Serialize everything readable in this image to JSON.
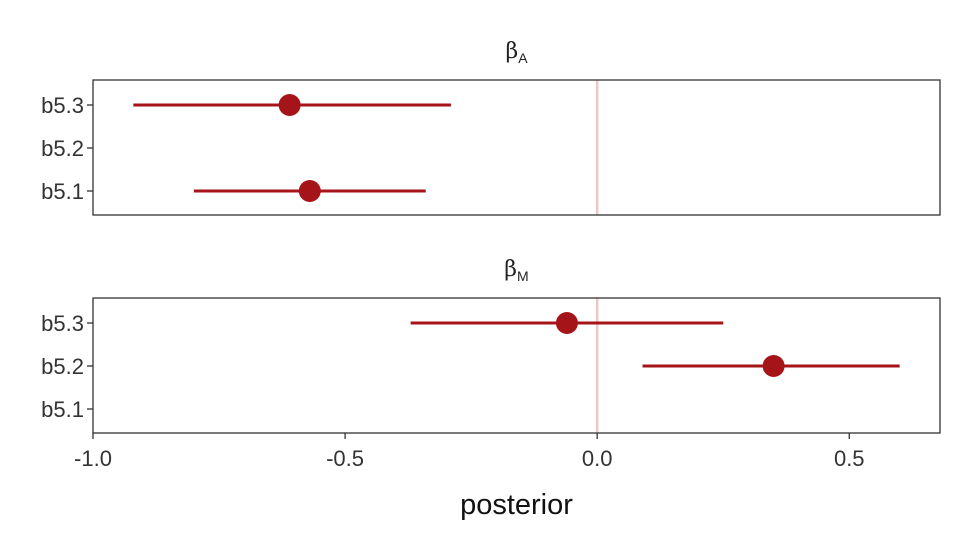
{
  "chart_data": {
    "type": "dot-interval",
    "xlabel": "posterior",
    "xlim": [
      -1.0,
      0.68
    ],
    "xticks": [
      -1.0,
      -0.5,
      0.0,
      0.5
    ],
    "xtick_labels": [
      "-1.0",
      "-0.5",
      "0.0",
      "0.5"
    ],
    "reference_line_x": 0.0,
    "colors": {
      "point": "#A51419",
      "interval": "#A51419",
      "reference_line": "#EBC7C8"
    },
    "categories": [
      "b5.3",
      "b5.2",
      "b5.1"
    ],
    "panels": [
      {
        "title": "β",
        "title_subscript": "A",
        "rows": [
          {
            "model": "b5.3",
            "mean": -0.61,
            "lower": -0.92,
            "upper": -0.29
          },
          {
            "model": "b5.2",
            "mean": null,
            "lower": null,
            "upper": null
          },
          {
            "model": "b5.1",
            "mean": -0.57,
            "lower": -0.8,
            "upper": -0.34
          }
        ]
      },
      {
        "title": "β",
        "title_subscript": "M",
        "rows": [
          {
            "model": "b5.3",
            "mean": -0.06,
            "lower": -0.37,
            "upper": 0.25
          },
          {
            "model": "b5.2",
            "mean": 0.35,
            "lower": 0.09,
            "upper": 0.6
          },
          {
            "model": "b5.1",
            "mean": null,
            "lower": null,
            "upper": null
          }
        ]
      }
    ]
  }
}
